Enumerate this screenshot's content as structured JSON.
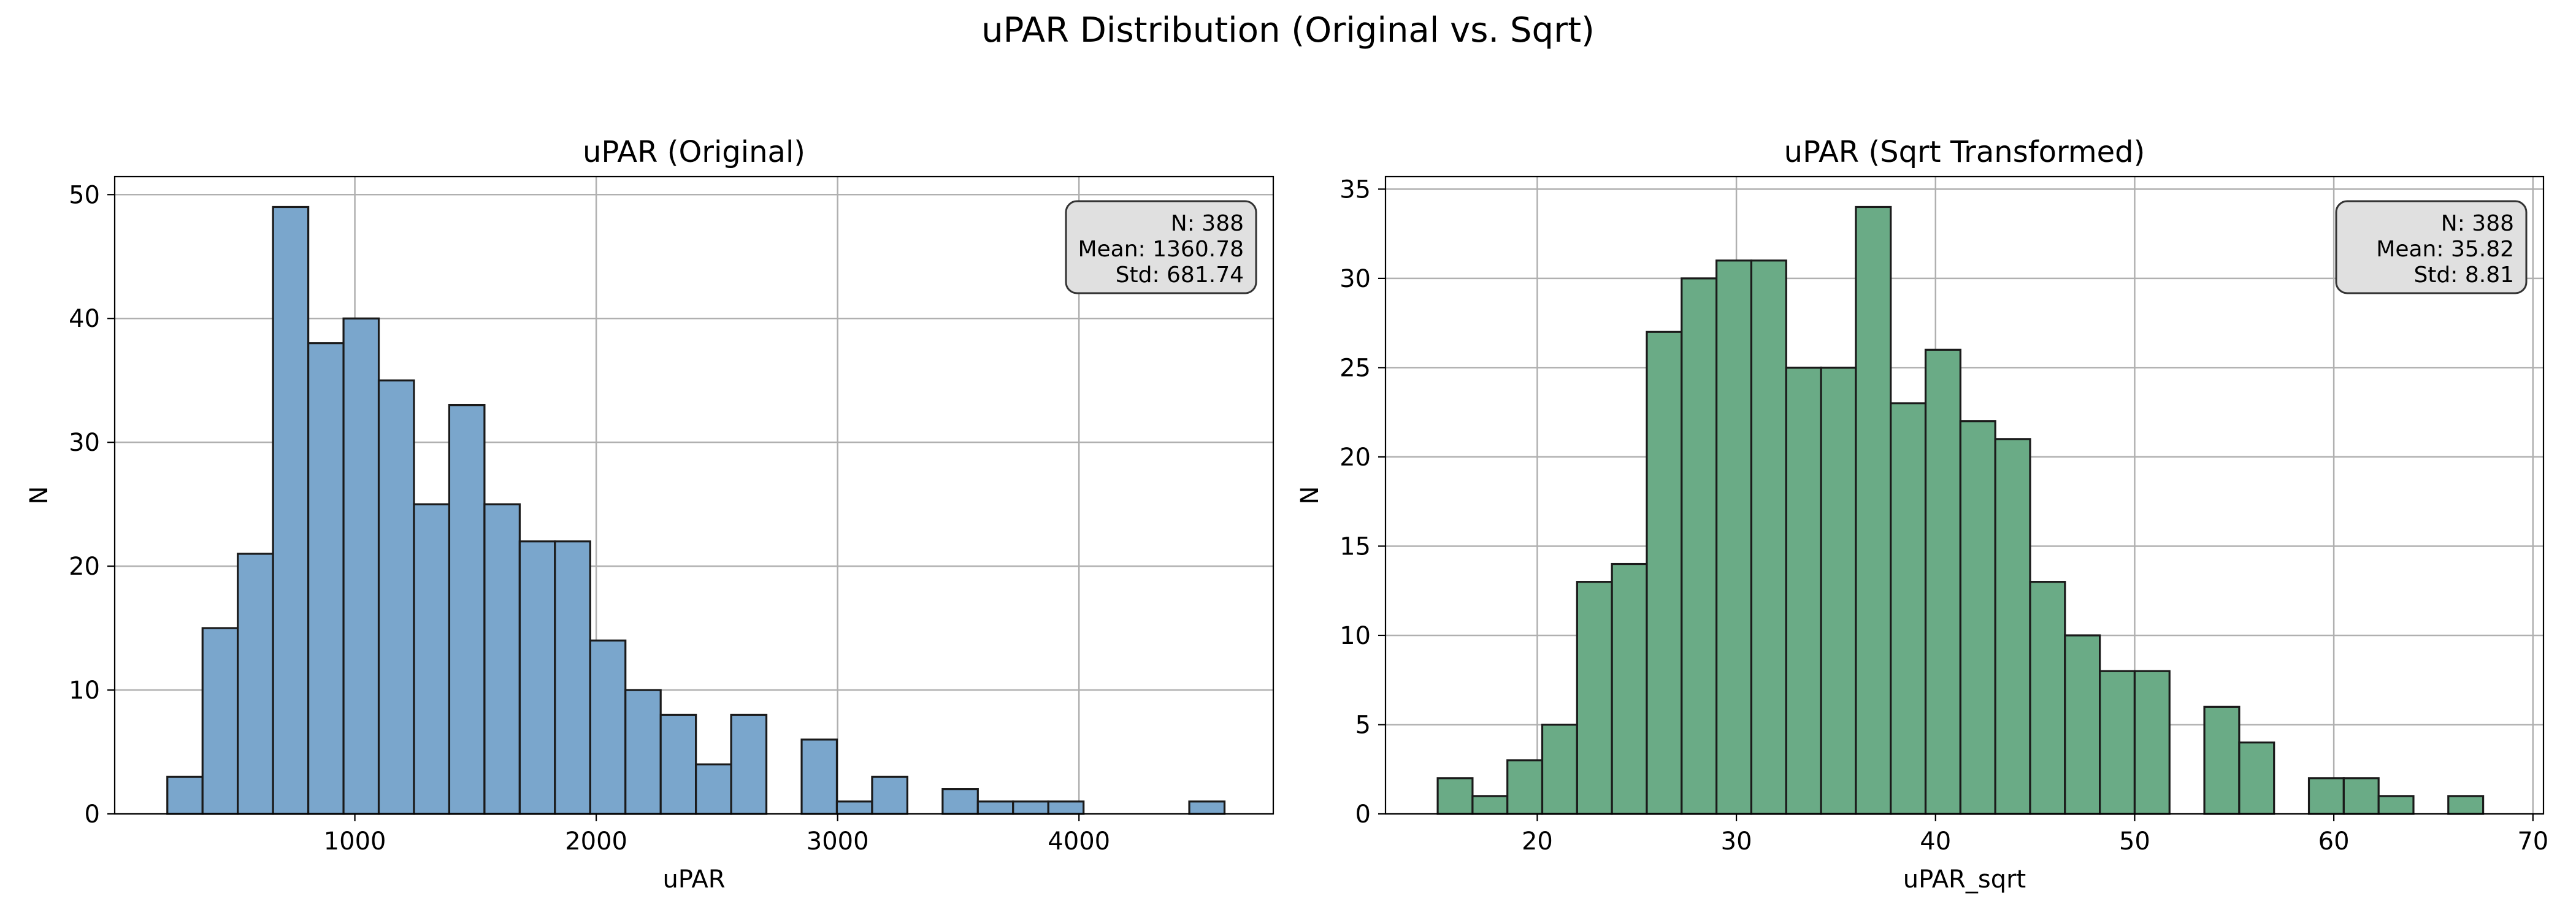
{
  "figure": {
    "suptitle": "uPAR Distribution (Original vs. Sqrt)"
  },
  "chart_data": [
    {
      "type": "bar",
      "title": "uPAR (Original)",
      "xlabel": "uPAR",
      "ylabel": "N",
      "xlim": [
        5,
        4805
      ],
      "ylim": [
        0,
        51.45
      ],
      "xticks": [
        1000,
        2000,
        3000,
        4000
      ],
      "yticks": [
        0,
        10,
        20,
        30,
        40,
        50
      ],
      "grid": true,
      "bar_color": "#7aa6cc",
      "edge_color": "#1a1a1a",
      "bin_start": 223,
      "bin_width": 146,
      "values": [
        3,
        15,
        21,
        49,
        38,
        40,
        35,
        25,
        33,
        25,
        22,
        22,
        14,
        10,
        8,
        4,
        8,
        0,
        6,
        1,
        3,
        0,
        2,
        1,
        1,
        1,
        0,
        0,
        0,
        1
      ],
      "stats_box": {
        "location": "top-right",
        "lines": [
          "N: 388",
          "Mean: 1360.78",
          "Std: 681.74"
        ]
      }
    },
    {
      "type": "bar",
      "title": "uPAR (Sqrt Transformed)",
      "xlabel": "uPAR_sqrt",
      "ylabel": "N",
      "xlim": [
        12.38,
        70.53
      ],
      "ylim": [
        0,
        35.7
      ],
      "xticks": [
        20,
        30,
        40,
        50,
        60,
        70
      ],
      "yticks": [
        0,
        5,
        10,
        15,
        20,
        25,
        30,
        35
      ],
      "grid": true,
      "bar_color": "#6aab86",
      "edge_color": "#1a1a1a",
      "bin_start": 15,
      "bin_width": 1.75,
      "values": [
        2,
        1,
        3,
        5,
        13,
        14,
        27,
        30,
        31,
        31,
        25,
        25,
        34,
        23,
        26,
        22,
        21,
        13,
        10,
        8,
        8,
        0,
        6,
        4,
        0,
        2,
        2,
        1,
        0,
        1
      ],
      "stats_box": {
        "location": "top-right",
        "lines": [
          "N: 388",
          "Mean: 35.82",
          "Std: 8.81"
        ]
      }
    }
  ]
}
